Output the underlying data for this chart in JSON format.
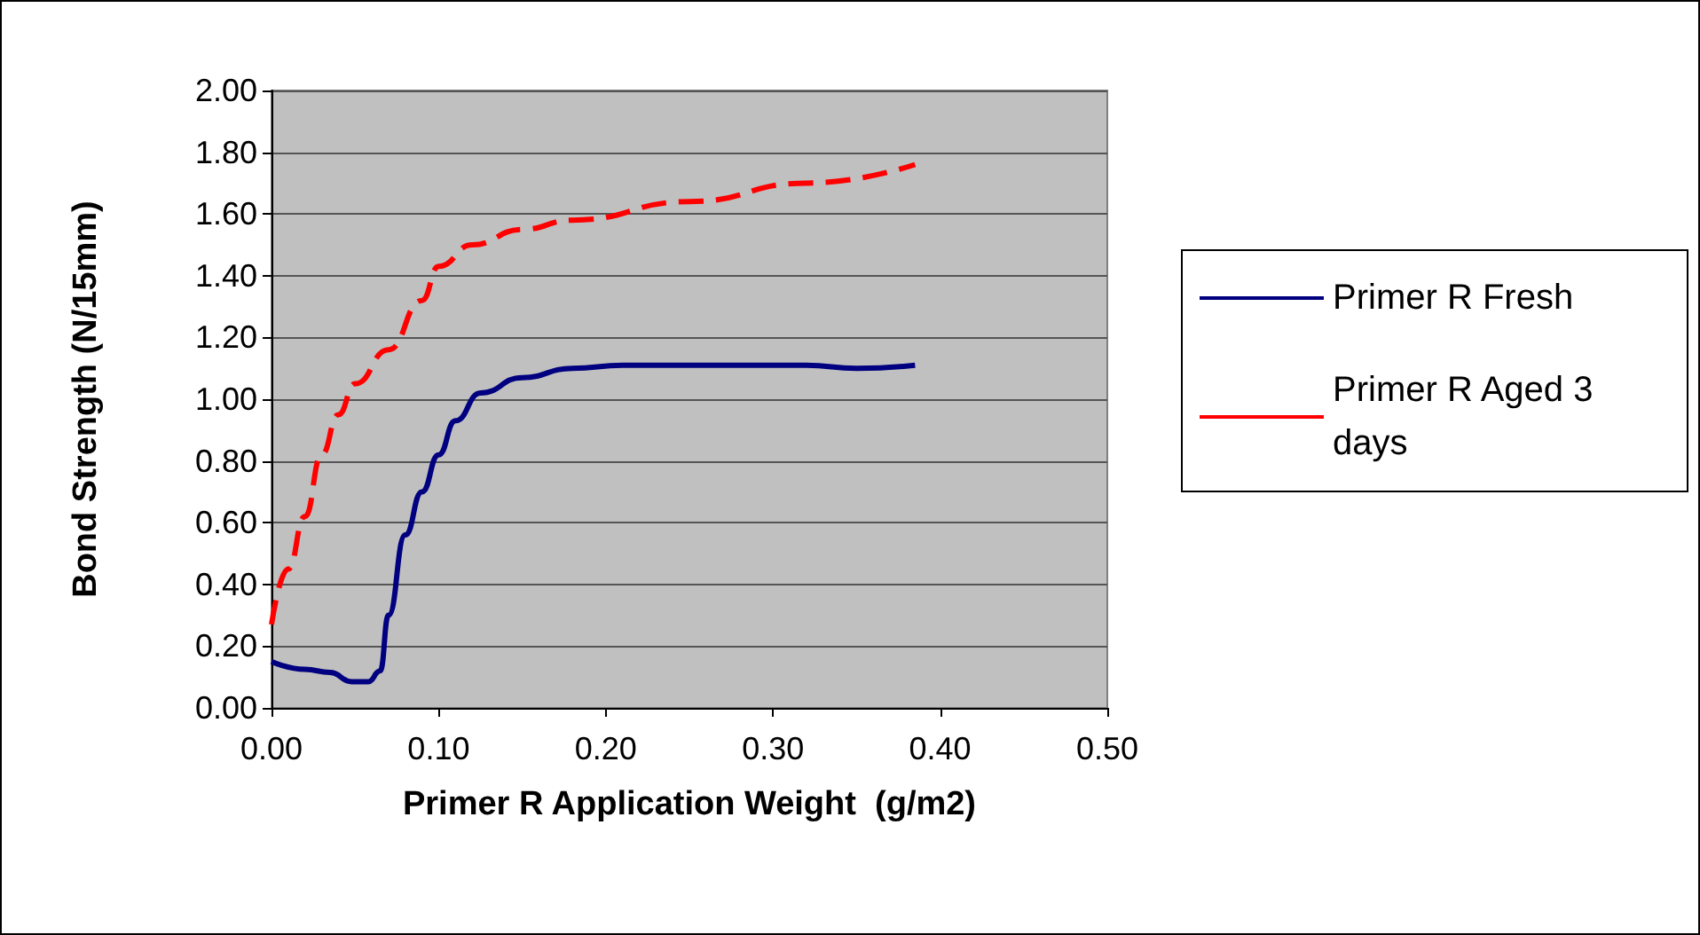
{
  "chart_data": {
    "type": "line",
    "xlabel": "Primer R Application Weight  (g/m2)",
    "ylabel": "Bond Strength (N/15mm)",
    "xlim": [
      0,
      0.5
    ],
    "xticks": [
      {
        "value": 0,
        "label": "0.00"
      },
      {
        "value": 0.1,
        "label": "0.10"
      },
      {
        "value": 0.2,
        "label": "0.20"
      },
      {
        "value": 0.3,
        "label": "0.30"
      },
      {
        "value": 0.4,
        "label": "0.40"
      },
      {
        "value": 0.5,
        "label": "0.50"
      }
    ],
    "ylim": [
      0,
      2
    ],
    "yticks": [
      {
        "value": 0,
        "label": "0.00"
      },
      {
        "value": 0.2,
        "label": "0.20"
      },
      {
        "value": 0.4,
        "label": "0.40"
      },
      {
        "value": 0.6,
        "label": "0.60"
      },
      {
        "value": 0.8,
        "label": "0.80"
      },
      {
        "value": 1,
        "label": "1.00"
      },
      {
        "value": 1.2,
        "label": "1.20"
      },
      {
        "value": 1.4,
        "label": "1.40"
      },
      {
        "value": 1.6,
        "label": "1.60"
      },
      {
        "value": 1.8,
        "label": "1.80"
      },
      {
        "value": 2,
        "label": "2.00"
      }
    ],
    "grid": "y",
    "legend": "right",
    "marker": "none",
    "series": [
      {
        "name": "Primer R Fresh",
        "color": "#000080",
        "line_style": "solid",
        "x": [
          0,
          0.02,
          0.035,
          0.048,
          0.058,
          0.065,
          0.07,
          0.08,
          0.09,
          0.1,
          0.11,
          0.125,
          0.15,
          0.18,
          0.21,
          0.32,
          0.35,
          0.385
        ],
        "values": [
          0.15,
          0.125,
          0.115,
          0.085,
          0.085,
          0.12,
          0.3,
          0.56,
          0.7,
          0.82,
          0.93,
          1.02,
          1.07,
          1.1,
          1.11,
          1.11,
          1.1,
          1.11
        ]
      },
      {
        "name": "Primer R Aged 3 days",
        "color": "#ff0000",
        "line_style": "dashed",
        "x": [
          0,
          0.01,
          0.02,
          0.03,
          0.04,
          0.05,
          0.07,
          0.09,
          0.1,
          0.12,
          0.15,
          0.18,
          0.25,
          0.32,
          0.385
        ],
        "values": [
          0.27,
          0.45,
          0.62,
          0.82,
          0.95,
          1.05,
          1.16,
          1.32,
          1.43,
          1.5,
          1.55,
          1.58,
          1.64,
          1.7,
          1.76
        ]
      }
    ]
  }
}
